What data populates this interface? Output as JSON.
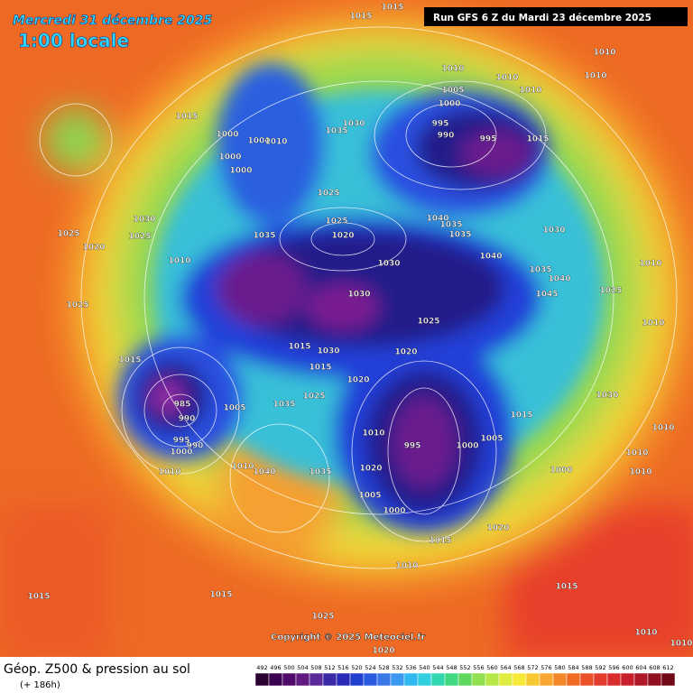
{
  "header": {
    "date": "Mercredi 31 décembre 2025",
    "local_time": "1:00 locale",
    "run": "Run GFS 6 Z du Mardi 23 décembre 2025"
  },
  "footer": {
    "title": "Géop. Z500 & pression au sol",
    "lead_time": "(+ 186h)",
    "copyright": "Copyright © 2025 Meteociel.fr"
  },
  "color_scale": [
    492,
    496,
    500,
    504,
    508,
    512,
    516,
    520,
    524,
    528,
    532,
    536,
    540,
    544,
    548,
    552,
    556,
    560,
    564,
    568,
    572,
    576,
    580,
    584,
    588,
    592,
    596,
    600,
    604,
    608,
    612
  ],
  "pressure_labels": [
    1015,
    1015,
    1010,
    1010,
    1010,
    1010,
    1010,
    1005,
    1000,
    995,
    990,
    995,
    1015,
    1015,
    1030,
    1035,
    1000,
    1000,
    1010,
    1000,
    1000,
    1025,
    1030,
    1025,
    1025,
    1020,
    1035,
    1025,
    1020,
    1040,
    1035,
    1035,
    1030,
    1040,
    1010,
    1030,
    1035,
    1040,
    1045,
    1025,
    1010,
    1030,
    1025,
    1025,
    1010,
    1015,
    1030,
    1020,
    1015,
    1015,
    1020,
    1025,
    985,
    990,
    1005,
    1035,
    1015,
    1010,
    995,
    1000,
    1005,
    995,
    990,
    1000,
    1010,
    1010,
    1040,
    1035,
    1020,
    1000,
    1010,
    1010,
    1010,
    1030,
    1005,
    1000,
    1020,
    1015,
    1010,
    1015,
    1015,
    1015,
    1025,
    1010,
    1010,
    1020
  ]
}
